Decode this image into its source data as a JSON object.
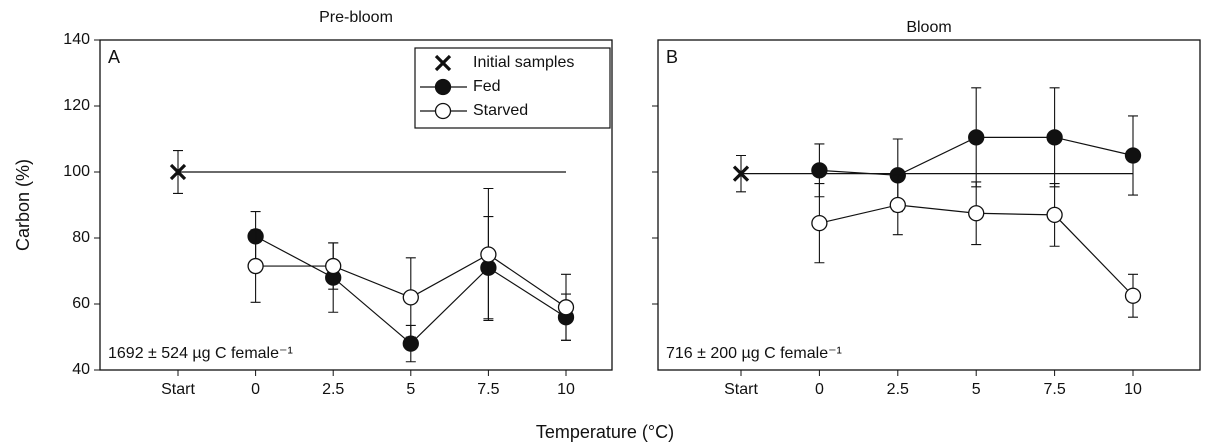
{
  "chart_data": [
    {
      "type": "line",
      "title": "Pre-bloom",
      "panel_label": "A",
      "ylabel": "Carbon (%)",
      "xlabel": "Temperature (°C)",
      "annotation": "1692 ± 524 µg C female⁻¹",
      "categories": [
        "Start",
        "0",
        "2.5",
        "5",
        "7.5",
        "10"
      ],
      "ylim": [
        40,
        140
      ],
      "yticks": [
        40,
        60,
        80,
        100,
        120,
        140
      ],
      "show_ytick_labels": true,
      "legend": "upper right",
      "series": [
        {
          "name": "Initial samples",
          "marker": "x",
          "color": "#111111",
          "values": [
            100,
            null,
            null,
            null,
            null,
            null
          ],
          "errors": [
            6.5,
            null,
            null,
            null,
            null,
            null
          ]
        },
        {
          "name": "Fed",
          "marker": "filled",
          "color": "#111111",
          "values": [
            null,
            80.5,
            68,
            48,
            71,
            56
          ],
          "errors": [
            null,
            7.5,
            10.5,
            5.5,
            15.5,
            7
          ]
        },
        {
          "name": "Starved",
          "marker": "open",
          "color": "#111111",
          "values": [
            null,
            71.5,
            71.5,
            62,
            75,
            59
          ],
          "errors": [
            null,
            11,
            7,
            12,
            20,
            10
          ]
        }
      ]
    },
    {
      "type": "line",
      "title": "Bloom",
      "panel_label": "B",
      "annotation": "716 ± 200 µg C female⁻¹",
      "categories": [
        "Start",
        "0",
        "2.5",
        "5",
        "7.5",
        "10"
      ],
      "ylim": [
        40,
        140
      ],
      "yticks": [
        60,
        80,
        100,
        120
      ],
      "show_ytick_labels": false,
      "series": [
        {
          "marker": "x",
          "color": "#111111",
          "values": [
            99.5,
            null,
            null,
            null,
            null,
            null
          ],
          "errors": [
            5.5,
            null,
            null,
            null,
            null,
            null
          ]
        },
        {
          "marker": "filled",
          "color": "#111111",
          "values": [
            null,
            100.5,
            99,
            110.5,
            110.5,
            105
          ],
          "errors": [
            null,
            8,
            11,
            15,
            15,
            12
          ]
        },
        {
          "marker": "open",
          "color": "#111111",
          "values": [
            null,
            84.5,
            90,
            87.5,
            87,
            62.5
          ],
          "errors": [
            null,
            12,
            9,
            9.5,
            9.5,
            6.5
          ]
        }
      ]
    }
  ]
}
